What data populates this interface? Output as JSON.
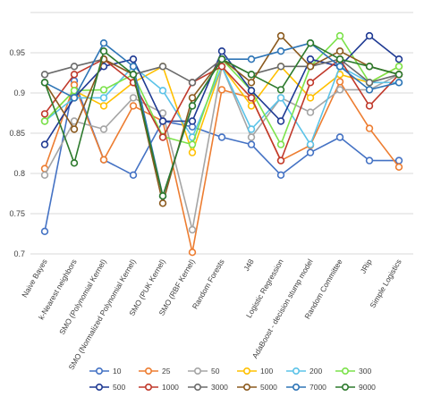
{
  "chart_data": {
    "type": "line",
    "title": "",
    "xlabel": "",
    "ylabel": "",
    "ylim": [
      0.7,
      1.0
    ],
    "yticks": [
      0.7,
      0.75,
      0.8,
      0.85,
      0.9,
      0.95
    ],
    "grid": true,
    "legend_position": "bottom",
    "categories": [
      "Naive Bayes",
      "k-Nearest neighbors",
      "SMO (Polynomial Kernel)",
      "SMO (Normalized Polynomial Kernel)",
      "SMO (PUK Kernel)",
      "SMO (RBF Kernel)",
      "Random Forests",
      "J48",
      "Logistic Regression",
      "AdaBoost - decision stump model",
      "Random Committee",
      "JRip",
      "Simple Logistics"
    ],
    "series": [
      {
        "name": "10",
        "color": "#4472C4",
        "values": [
          0.728,
          0.915,
          0.817,
          0.798,
          0.865,
          0.858,
          0.845,
          0.836,
          0.798,
          0.826,
          0.845,
          0.816,
          0.816
        ]
      },
      {
        "name": "25",
        "color": "#ED7D31",
        "values": [
          0.806,
          0.91,
          0.817,
          0.884,
          0.865,
          0.702,
          0.904,
          0.894,
          0.816,
          0.835,
          0.914,
          0.856,
          0.808
        ]
      },
      {
        "name": "50",
        "color": "#A5A5A5",
        "values": [
          0.798,
          0.865,
          0.855,
          0.894,
          0.875,
          0.73,
          0.933,
          0.845,
          0.894,
          0.876,
          0.904,
          0.904,
          0.923
        ]
      },
      {
        "name": "100",
        "color": "#FFC000",
        "values": [
          0.865,
          0.903,
          0.884,
          0.913,
          0.933,
          0.826,
          0.933,
          0.884,
          0.933,
          0.894,
          0.923,
          0.913,
          0.933
        ]
      },
      {
        "name": "200",
        "color": "#5BC3E8",
        "values": [
          0.865,
          0.894,
          0.894,
          0.933,
          0.903,
          0.845,
          0.933,
          0.855,
          0.894,
          0.836,
          0.933,
          0.913,
          0.913
        ]
      },
      {
        "name": "300",
        "color": "#7CE24B",
        "values": [
          0.865,
          0.903,
          0.904,
          0.923,
          0.846,
          0.836,
          0.942,
          0.903,
          0.836,
          0.933,
          0.971,
          0.913,
          0.933
        ]
      },
      {
        "name": "500",
        "color": "#1F3A93",
        "values": [
          0.836,
          0.894,
          0.933,
          0.942,
          0.865,
          0.865,
          0.952,
          0.903,
          0.865,
          0.942,
          0.933,
          0.971,
          0.942
        ]
      },
      {
        "name": "1000",
        "color": "#C0392B",
        "values": [
          0.874,
          0.923,
          0.942,
          0.913,
          0.845,
          0.913,
          0.933,
          0.894,
          0.816,
          0.913,
          0.942,
          0.884,
          0.923
        ]
      },
      {
        "name": "3000",
        "color": "#6B6B6B",
        "values": [
          0.923,
          0.933,
          0.942,
          0.923,
          0.933,
          0.913,
          0.942,
          0.923,
          0.933,
          0.933,
          0.942,
          0.913,
          0.923
        ]
      },
      {
        "name": "5000",
        "color": "#8B5A1E",
        "values": [
          0.913,
          0.855,
          0.942,
          0.923,
          0.763,
          0.894,
          0.942,
          0.913,
          0.971,
          0.933,
          0.952,
          0.933,
          0.923
        ]
      },
      {
        "name": "7000",
        "color": "#2E75B6",
        "values": [
          0.913,
          0.894,
          0.962,
          0.933,
          0.772,
          0.884,
          0.942,
          0.942,
          0.952,
          0.962,
          0.933,
          0.904,
          0.913
        ]
      },
      {
        "name": "9000",
        "color": "#2D7A2D",
        "values": [
          0.913,
          0.813,
          0.952,
          0.923,
          0.772,
          0.884,
          0.942,
          0.923,
          0.904,
          0.962,
          0.942,
          0.933,
          0.923
        ]
      }
    ]
  }
}
